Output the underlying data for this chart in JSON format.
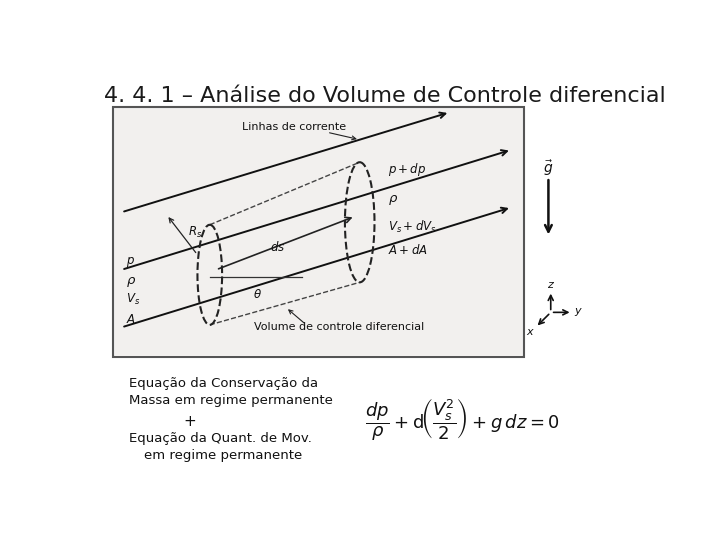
{
  "title": "4. 4. 1 – Análise do Volume de Controle diferencial",
  "title_fontsize": 16,
  "title_color": "#1a1a1a",
  "background_color": "#ffffff",
  "box_facecolor": "#ffffff",
  "box_edgecolor": "#555555",
  "diagram_bg": "#e8e8e8",
  "text_left_line1": "Equação da Conservação da",
  "text_left_line2": "Massa em regime permanente",
  "text_left_line3": "+",
  "text_left_line4": "Equação da Quant. de Mov.",
  "text_left_line5": "em regime permanente",
  "equation": "$\\dfrac{dp}{\\rho} + \\mathrm{d}\\!\\left(\\dfrac{V_s^2}{2}\\right) + g\\,dz = 0$",
  "label_linhas": "Linhas de corrente",
  "label_volume": "Volume de controle diferencial",
  "label_p_dp": "$p + dp$",
  "label_rho_r": "$\\rho$",
  "label_vs_dvs": "$V_s + dV_s$",
  "label_a_da": "$A + dA$",
  "label_p": "$p$",
  "label_rho_l": "$\\rho$",
  "label_vs": "$V_s$",
  "label_a": "$A$",
  "label_rs": "$R_s$",
  "label_ds": "$ds$",
  "label_theta": "$\\theta$",
  "label_g": "$\\vec{g}$",
  "label_z": "$z$",
  "label_y": "$y$",
  "label_x": "$x$",
  "stream_color": "#111111",
  "ellipse_color": "#222222",
  "text_color": "#111111",
  "italic_color": "#000000"
}
